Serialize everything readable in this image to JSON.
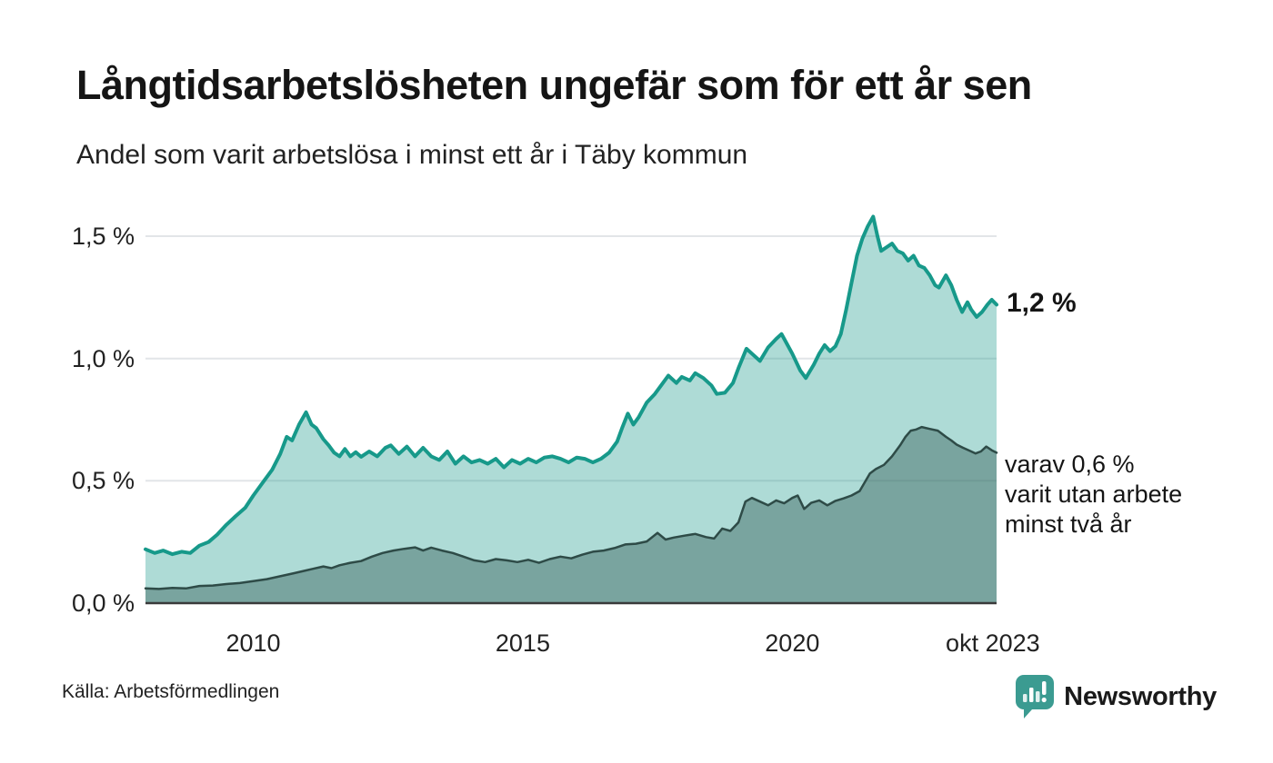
{
  "header": {
    "title": "Långtidsarbetslösheten ungefär som för ett år sen",
    "subtitle": "Andel som varit arbetslösa i minst ett år i Täby kommun"
  },
  "chart_data": {
    "type": "area",
    "title": "Långtidsarbetslösheten ungefär som för ett år sen",
    "subtitle": "Andel som varit arbetslösa i minst ett år i Täby kommun",
    "unit": "%",
    "grid": "horizontal",
    "x_range": [
      2008.0,
      2023.79
    ],
    "y_range": [
      0,
      1.65
    ],
    "y_ticks": [
      {
        "value": 1.5,
        "label": "1,5 %"
      },
      {
        "value": 1.0,
        "label": "1,0 %"
      },
      {
        "value": 0.5,
        "label": "0,5 %"
      },
      {
        "value": 0.0,
        "label": "0,0 %"
      }
    ],
    "x_ticks": [
      {
        "value": 2010.0,
        "label": "2010"
      },
      {
        "value": 2015.0,
        "label": "2015"
      },
      {
        "value": 2020.0,
        "label": "2020"
      },
      {
        "value": 2023.72,
        "label": "okt 2023"
      }
    ],
    "series": [
      {
        "name": "Andel arbetslösa minst ett år",
        "end_label": "1,2 %",
        "end_value": 1.2,
        "line_color": "#17998a",
        "fill_color": "rgba(23,153,138,0.35)",
        "line_width": 4,
        "points": [
          [
            2008.0,
            0.22
          ],
          [
            2008.17,
            0.205
          ],
          [
            2008.33,
            0.215
          ],
          [
            2008.5,
            0.2
          ],
          [
            2008.67,
            0.21
          ],
          [
            2008.83,
            0.205
          ],
          [
            2009.0,
            0.235
          ],
          [
            2009.17,
            0.25
          ],
          [
            2009.33,
            0.28
          ],
          [
            2009.5,
            0.32
          ],
          [
            2009.67,
            0.355
          ],
          [
            2009.85,
            0.39
          ],
          [
            2010.0,
            0.44
          ],
          [
            2010.2,
            0.5
          ],
          [
            2010.35,
            0.545
          ],
          [
            2010.5,
            0.61
          ],
          [
            2010.62,
            0.68
          ],
          [
            2010.72,
            0.665
          ],
          [
            2010.85,
            0.73
          ],
          [
            2010.98,
            0.78
          ],
          [
            2011.08,
            0.73
          ],
          [
            2011.17,
            0.715
          ],
          [
            2011.3,
            0.67
          ],
          [
            2011.4,
            0.645
          ],
          [
            2011.5,
            0.615
          ],
          [
            2011.6,
            0.6
          ],
          [
            2011.7,
            0.63
          ],
          [
            2011.8,
            0.6
          ],
          [
            2011.9,
            0.617
          ],
          [
            2012.0,
            0.598
          ],
          [
            2012.15,
            0.62
          ],
          [
            2012.3,
            0.6
          ],
          [
            2012.45,
            0.635
          ],
          [
            2012.55,
            0.645
          ],
          [
            2012.7,
            0.61
          ],
          [
            2012.85,
            0.64
          ],
          [
            2013.0,
            0.6
          ],
          [
            2013.15,
            0.635
          ],
          [
            2013.3,
            0.6
          ],
          [
            2013.45,
            0.585
          ],
          [
            2013.6,
            0.62
          ],
          [
            2013.75,
            0.57
          ],
          [
            2013.9,
            0.6
          ],
          [
            2014.05,
            0.575
          ],
          [
            2014.2,
            0.585
          ],
          [
            2014.35,
            0.57
          ],
          [
            2014.5,
            0.59
          ],
          [
            2014.65,
            0.555
          ],
          [
            2014.8,
            0.585
          ],
          [
            2014.95,
            0.57
          ],
          [
            2015.1,
            0.59
          ],
          [
            2015.25,
            0.575
          ],
          [
            2015.4,
            0.595
          ],
          [
            2015.55,
            0.6
          ],
          [
            2015.7,
            0.59
          ],
          [
            2015.85,
            0.575
          ],
          [
            2016.0,
            0.595
          ],
          [
            2016.15,
            0.59
          ],
          [
            2016.3,
            0.575
          ],
          [
            2016.45,
            0.59
          ],
          [
            2016.6,
            0.615
          ],
          [
            2016.75,
            0.66
          ],
          [
            2016.85,
            0.72
          ],
          [
            2016.95,
            0.775
          ],
          [
            2017.05,
            0.73
          ],
          [
            2017.15,
            0.76
          ],
          [
            2017.3,
            0.82
          ],
          [
            2017.45,
            0.855
          ],
          [
            2017.6,
            0.9
          ],
          [
            2017.7,
            0.93
          ],
          [
            2017.85,
            0.9
          ],
          [
            2017.95,
            0.925
          ],
          [
            2018.1,
            0.91
          ],
          [
            2018.2,
            0.94
          ],
          [
            2018.35,
            0.92
          ],
          [
            2018.5,
            0.89
          ],
          [
            2018.6,
            0.855
          ],
          [
            2018.75,
            0.86
          ],
          [
            2018.9,
            0.9
          ],
          [
            2019.0,
            0.96
          ],
          [
            2019.15,
            1.04
          ],
          [
            2019.25,
            1.02
          ],
          [
            2019.4,
            0.99
          ],
          [
            2019.55,
            1.045
          ],
          [
            2019.7,
            1.08
          ],
          [
            2019.8,
            1.1
          ],
          [
            2019.9,
            1.06
          ],
          [
            2020.0,
            1.02
          ],
          [
            2020.15,
            0.95
          ],
          [
            2020.25,
            0.92
          ],
          [
            2020.4,
            0.975
          ],
          [
            2020.5,
            1.02
          ],
          [
            2020.6,
            1.055
          ],
          [
            2020.7,
            1.03
          ],
          [
            2020.8,
            1.05
          ],
          [
            2020.9,
            1.1
          ],
          [
            2021.0,
            1.2
          ],
          [
            2021.1,
            1.31
          ],
          [
            2021.2,
            1.42
          ],
          [
            2021.3,
            1.49
          ],
          [
            2021.4,
            1.54
          ],
          [
            2021.5,
            1.58
          ],
          [
            2021.58,
            1.5
          ],
          [
            2021.65,
            1.44
          ],
          [
            2021.75,
            1.455
          ],
          [
            2021.85,
            1.47
          ],
          [
            2021.95,
            1.44
          ],
          [
            2022.05,
            1.43
          ],
          [
            2022.15,
            1.4
          ],
          [
            2022.25,
            1.42
          ],
          [
            2022.35,
            1.38
          ],
          [
            2022.45,
            1.37
          ],
          [
            2022.55,
            1.34
          ],
          [
            2022.65,
            1.3
          ],
          [
            2022.72,
            1.29
          ],
          [
            2022.85,
            1.34
          ],
          [
            2022.95,
            1.3
          ],
          [
            2023.05,
            1.24
          ],
          [
            2023.15,
            1.19
          ],
          [
            2023.25,
            1.23
          ],
          [
            2023.32,
            1.2
          ],
          [
            2023.42,
            1.17
          ],
          [
            2023.52,
            1.19
          ],
          [
            2023.62,
            1.22
          ],
          [
            2023.7,
            1.24
          ],
          [
            2023.79,
            1.22
          ]
        ]
      },
      {
        "name": "varav utan arbete minst två år",
        "end_label_lines": [
          "varav 0,6 %",
          "varit utan arbete",
          "minst två år"
        ],
        "end_value": 0.6,
        "line_color": "#2e4b47",
        "fill_color": "rgba(54,94,88,0.44)",
        "line_width": 2.5,
        "points": [
          [
            2008.0,
            0.06
          ],
          [
            2008.25,
            0.058
          ],
          [
            2008.5,
            0.062
          ],
          [
            2008.75,
            0.06
          ],
          [
            2009.0,
            0.07
          ],
          [
            2009.25,
            0.072
          ],
          [
            2009.5,
            0.078
          ],
          [
            2009.75,
            0.082
          ],
          [
            2010.0,
            0.09
          ],
          [
            2010.25,
            0.098
          ],
          [
            2010.5,
            0.11
          ],
          [
            2010.75,
            0.122
          ],
          [
            2010.95,
            0.132
          ],
          [
            2011.1,
            0.14
          ],
          [
            2011.3,
            0.15
          ],
          [
            2011.45,
            0.143
          ],
          [
            2011.6,
            0.155
          ],
          [
            2011.8,
            0.165
          ],
          [
            2012.0,
            0.172
          ],
          [
            2012.2,
            0.19
          ],
          [
            2012.4,
            0.205
          ],
          [
            2012.6,
            0.215
          ],
          [
            2012.8,
            0.222
          ],
          [
            2013.0,
            0.228
          ],
          [
            2013.15,
            0.215
          ],
          [
            2013.3,
            0.227
          ],
          [
            2013.5,
            0.215
          ],
          [
            2013.7,
            0.205
          ],
          [
            2013.9,
            0.19
          ],
          [
            2014.1,
            0.175
          ],
          [
            2014.3,
            0.168
          ],
          [
            2014.5,
            0.18
          ],
          [
            2014.7,
            0.175
          ],
          [
            2014.9,
            0.168
          ],
          [
            2015.1,
            0.177
          ],
          [
            2015.3,
            0.165
          ],
          [
            2015.5,
            0.18
          ],
          [
            2015.7,
            0.19
          ],
          [
            2015.9,
            0.183
          ],
          [
            2016.1,
            0.198
          ],
          [
            2016.3,
            0.21
          ],
          [
            2016.5,
            0.215
          ],
          [
            2016.7,
            0.225
          ],
          [
            2016.9,
            0.24
          ],
          [
            2017.1,
            0.243
          ],
          [
            2017.3,
            0.252
          ],
          [
            2017.5,
            0.287
          ],
          [
            2017.65,
            0.26
          ],
          [
            2017.8,
            0.268
          ],
          [
            2018.0,
            0.276
          ],
          [
            2018.2,
            0.283
          ],
          [
            2018.4,
            0.27
          ],
          [
            2018.55,
            0.264
          ],
          [
            2018.7,
            0.305
          ],
          [
            2018.85,
            0.295
          ],
          [
            2019.0,
            0.33
          ],
          [
            2019.13,
            0.415
          ],
          [
            2019.25,
            0.43
          ],
          [
            2019.4,
            0.415
          ],
          [
            2019.55,
            0.4
          ],
          [
            2019.7,
            0.42
          ],
          [
            2019.85,
            0.408
          ],
          [
            2020.0,
            0.43
          ],
          [
            2020.1,
            0.44
          ],
          [
            2020.22,
            0.385
          ],
          [
            2020.35,
            0.41
          ],
          [
            2020.5,
            0.42
          ],
          [
            2020.65,
            0.4
          ],
          [
            2020.8,
            0.418
          ],
          [
            2020.95,
            0.428
          ],
          [
            2021.1,
            0.44
          ],
          [
            2021.25,
            0.458
          ],
          [
            2021.44,
            0.53
          ],
          [
            2021.55,
            0.548
          ],
          [
            2021.7,
            0.565
          ],
          [
            2021.85,
            0.6
          ],
          [
            2022.0,
            0.645
          ],
          [
            2022.1,
            0.68
          ],
          [
            2022.2,
            0.705
          ],
          [
            2022.3,
            0.71
          ],
          [
            2022.4,
            0.72
          ],
          [
            2022.55,
            0.712
          ],
          [
            2022.7,
            0.705
          ],
          [
            2022.85,
            0.68
          ],
          [
            2022.95,
            0.665
          ],
          [
            2023.05,
            0.648
          ],
          [
            2023.17,
            0.635
          ],
          [
            2023.3,
            0.622
          ],
          [
            2023.4,
            0.612
          ],
          [
            2023.5,
            0.62
          ],
          [
            2023.6,
            0.64
          ],
          [
            2023.7,
            0.625
          ],
          [
            2023.79,
            0.615
          ]
        ]
      }
    ]
  },
  "colors": {
    "gridline": "#e2e5e8",
    "baseline": "#3a3a3a",
    "brand_teal": "#3b9b91"
  },
  "footer": {
    "source": "Källa: Arbetsförmedlingen",
    "brand": "Newsworthy"
  }
}
